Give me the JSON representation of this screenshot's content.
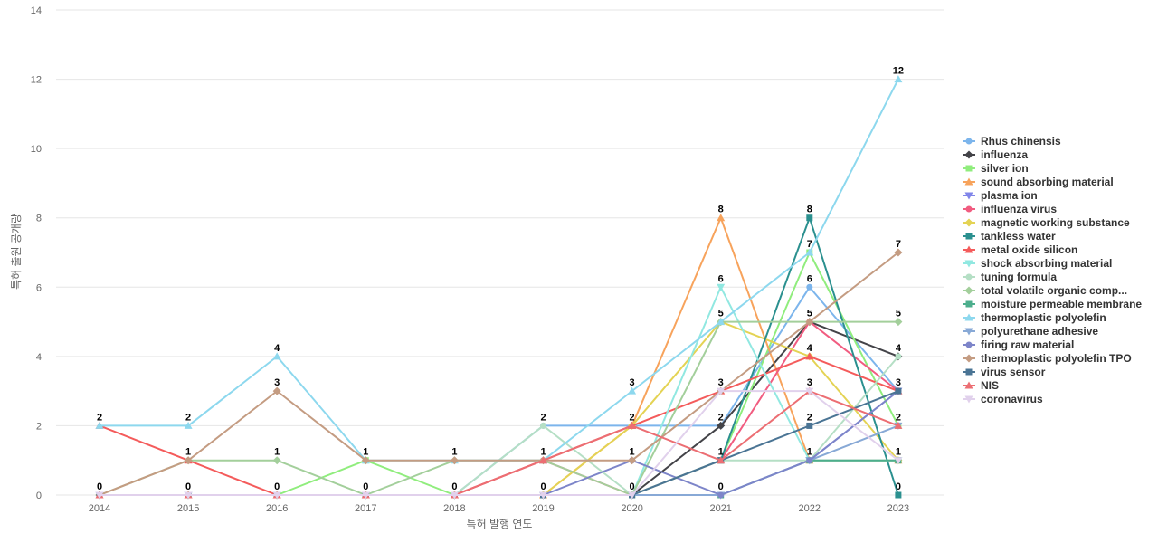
{
  "chart_data": {
    "type": "line",
    "title": "",
    "xlabel": "특허 발행 연도",
    "ylabel": "특허 출원 공개량",
    "ylim": [
      0,
      14
    ],
    "yticks": [
      0,
      2,
      4,
      6,
      8,
      10,
      12,
      14
    ],
    "categories": [
      "2014",
      "2015",
      "2016",
      "2017",
      "2018",
      "2019",
      "2020",
      "2021",
      "2022",
      "2023"
    ],
    "legend_position": "right",
    "grid": true,
    "series": [
      {
        "name": "Rhus chinensis",
        "color": "#7cb5ec",
        "marker": "circle",
        "values": [
          0,
          0,
          0,
          0,
          0,
          2,
          2,
          2,
          6,
          3
        ]
      },
      {
        "name": "influenza",
        "color": "#434348",
        "marker": "diamond",
        "values": [
          0,
          0,
          0,
          0,
          0,
          0,
          0,
          2,
          5,
          4
        ]
      },
      {
        "name": "silver ion",
        "color": "#90ed7d",
        "marker": "square",
        "values": [
          0,
          0,
          0,
          1,
          0,
          0,
          0,
          1,
          7,
          2
        ]
      },
      {
        "name": "sound absorbing material",
        "color": "#f7a35c",
        "marker": "triangle",
        "values": [
          0,
          0,
          0,
          0,
          0,
          0,
          2,
          8,
          1,
          1
        ]
      },
      {
        "name": "plasma ion",
        "color": "#8085e9",
        "marker": "triangle-down",
        "values": [
          0,
          0,
          0,
          0,
          0,
          0,
          0,
          0,
          1,
          3
        ]
      },
      {
        "name": "influenza virus",
        "color": "#f15c80",
        "marker": "circle",
        "values": [
          0,
          0,
          0,
          0,
          0,
          1,
          0,
          1,
          5,
          3
        ]
      },
      {
        "name": "magnetic working substance",
        "color": "#e4d354",
        "marker": "diamond",
        "values": [
          0,
          0,
          0,
          0,
          0,
          0,
          2,
          5,
          4,
          1
        ]
      },
      {
        "name": "tankless water",
        "color": "#2b908f",
        "marker": "square",
        "values": [
          0,
          0,
          0,
          0,
          0,
          0,
          0,
          1,
          8,
          0
        ]
      },
      {
        "name": "metal oxide silicon",
        "color": "#f45b5b",
        "marker": "triangle",
        "values": [
          2,
          1,
          0,
          0,
          0,
          1,
          2,
          3,
          4,
          3
        ]
      },
      {
        "name": "shock absorbing material",
        "color": "#91e8e1",
        "marker": "triangle-down",
        "values": [
          0,
          0,
          0,
          0,
          0,
          0,
          0,
          6,
          1,
          1
        ]
      },
      {
        "name": "tuning formula",
        "color": "#b5dfc5",
        "marker": "circle",
        "values": [
          0,
          0,
          0,
          0,
          0,
          2,
          0,
          1,
          1,
          4
        ]
      },
      {
        "name": "total volatile organic comp...",
        "color": "#a3cf9b",
        "marker": "diamond",
        "values": [
          0,
          1,
          1,
          0,
          1,
          1,
          0,
          5,
          5,
          5
        ]
      },
      {
        "name": "moisture permeable membrane",
        "color": "#4cae8c",
        "marker": "square",
        "values": [
          0,
          0,
          0,
          0,
          0,
          0,
          0,
          0,
          1,
          1
        ]
      },
      {
        "name": "thermoplastic polyolefin",
        "color": "#8dd8ee",
        "marker": "triangle",
        "values": [
          2,
          2,
          4,
          1,
          1,
          1,
          3,
          5,
          7,
          12
        ]
      },
      {
        "name": "polyurethane adhesive",
        "color": "#88a9d6",
        "marker": "triangle-down",
        "values": [
          0,
          0,
          0,
          0,
          0,
          0,
          0,
          0,
          1,
          2
        ]
      },
      {
        "name": "firing raw material",
        "color": "#7d85c9",
        "marker": "circle",
        "values": [
          0,
          0,
          0,
          0,
          0,
          0,
          1,
          0,
          1,
          3
        ]
      },
      {
        "name": "thermoplastic polyolefin TPO",
        "color": "#c49c82",
        "marker": "diamond",
        "values": [
          0,
          1,
          3,
          1,
          1,
          1,
          1,
          3,
          5,
          7
        ]
      },
      {
        "name": "virus sensor",
        "color": "#4a7494",
        "marker": "square",
        "values": [
          0,
          0,
          0,
          0,
          0,
          0,
          0,
          1,
          2,
          3
        ]
      },
      {
        "name": "NIS",
        "color": "#ec6e73",
        "marker": "triangle",
        "values": [
          0,
          0,
          0,
          0,
          0,
          1,
          2,
          1,
          3,
          2
        ]
      },
      {
        "name": "coronavirus",
        "color": "#e1d1ec",
        "marker": "triangle-down",
        "values": [
          0,
          0,
          0,
          0,
          0,
          0,
          0,
          3,
          3,
          1
        ]
      }
    ],
    "data_labels": [
      {
        "x": "2014",
        "y": 2,
        "text": "2"
      },
      {
        "x": "2014",
        "y": 0,
        "text": "0"
      },
      {
        "x": "2015",
        "y": 2,
        "text": "2"
      },
      {
        "x": "2015",
        "y": 1,
        "text": "1"
      },
      {
        "x": "2015",
        "y": 0,
        "text": "0"
      },
      {
        "x": "2016",
        "y": 4,
        "text": "4"
      },
      {
        "x": "2016",
        "y": 3,
        "text": "3"
      },
      {
        "x": "2016",
        "y": 1,
        "text": "1"
      },
      {
        "x": "2016",
        "y": 0,
        "text": "0"
      },
      {
        "x": "2017",
        "y": 1,
        "text": "1"
      },
      {
        "x": "2017",
        "y": 0,
        "text": "0"
      },
      {
        "x": "2018",
        "y": 1,
        "text": "1"
      },
      {
        "x": "2018",
        "y": 0,
        "text": "0"
      },
      {
        "x": "2019",
        "y": 2,
        "text": "2"
      },
      {
        "x": "2019",
        "y": 1,
        "text": "1"
      },
      {
        "x": "2019",
        "y": 0,
        "text": "0"
      },
      {
        "x": "2020",
        "y": 3,
        "text": "3"
      },
      {
        "x": "2020",
        "y": 2,
        "text": "2"
      },
      {
        "x": "2020",
        "y": 1,
        "text": "1"
      },
      {
        "x": "2020",
        "y": 0,
        "text": "0"
      },
      {
        "x": "2021",
        "y": 8,
        "text": "8"
      },
      {
        "x": "2021",
        "y": 6,
        "text": "6"
      },
      {
        "x": "2021",
        "y": 5,
        "text": "5"
      },
      {
        "x": "2021",
        "y": 3,
        "text": "3"
      },
      {
        "x": "2021",
        "y": 2,
        "text": "2"
      },
      {
        "x": "2021",
        "y": 1,
        "text": "1"
      },
      {
        "x": "2021",
        "y": 0,
        "text": "0"
      },
      {
        "x": "2022",
        "y": 8,
        "text": "8"
      },
      {
        "x": "2022",
        "y": 7,
        "text": "7"
      },
      {
        "x": "2022",
        "y": 6,
        "text": "6"
      },
      {
        "x": "2022",
        "y": 5,
        "text": "5"
      },
      {
        "x": "2022",
        "y": 4,
        "text": "4"
      },
      {
        "x": "2022",
        "y": 3,
        "text": "3"
      },
      {
        "x": "2022",
        "y": 2,
        "text": "2"
      },
      {
        "x": "2022",
        "y": 1,
        "text": "1"
      },
      {
        "x": "2023",
        "y": 12,
        "text": "12"
      },
      {
        "x": "2023",
        "y": 7,
        "text": "7"
      },
      {
        "x": "2023",
        "y": 5,
        "text": "5"
      },
      {
        "x": "2023",
        "y": 4,
        "text": "4"
      },
      {
        "x": "2023",
        "y": 3,
        "text": "3"
      },
      {
        "x": "2023",
        "y": 2,
        "text": "2"
      },
      {
        "x": "2023",
        "y": 1,
        "text": "1"
      },
      {
        "x": "2023",
        "y": 0,
        "text": "0"
      }
    ]
  }
}
